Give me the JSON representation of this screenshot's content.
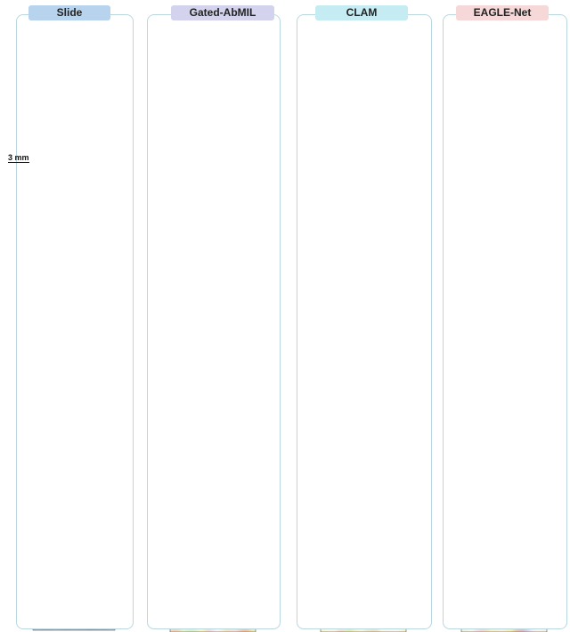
{
  "columns": [
    {
      "label": "Slide",
      "color": "#b7d3ee",
      "kind": "he"
    },
    {
      "label": "Gated-AbMIL",
      "color": "#d3d3ee",
      "kind": "heat"
    },
    {
      "label": "CLAM",
      "color": "#c5ecf3",
      "kind": "heat"
    },
    {
      "label": "EAGLE-Net",
      "color": "#f6d8d8",
      "kind": "heat"
    }
  ],
  "scale_bar": "3 mm",
  "colors": {
    "panel_border": "#b9d7df",
    "he_tissue": "#9c3f8e",
    "heat_high": "#d62a1f",
    "heat_low": "#3d5fd6"
  }
}
